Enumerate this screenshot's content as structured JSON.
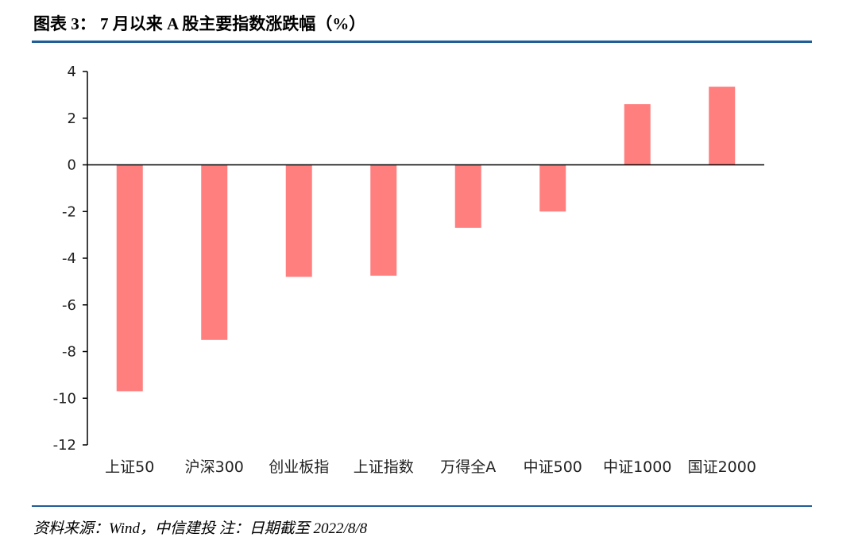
{
  "header": {
    "title": "图表 3：  7 月以来 A 股主要指数涨跌幅（%）"
  },
  "footer": {
    "source": "资料来源：Wind，中信建投   注：日期截至 2022/8/8"
  },
  "colors": {
    "bar": "#ff7f7f",
    "rule": "#1f5e96",
    "axis": "#000000"
  },
  "chart_data": {
    "type": "bar",
    "title": "7 月以来 A 股主要指数涨跌幅（%）",
    "categories": [
      "上证50",
      "沪深300",
      "创业板指",
      "上证指数",
      "万得全A",
      "中证500",
      "中证1000",
      "国证2000"
    ],
    "values": [
      -9.7,
      -7.5,
      -4.8,
      -4.75,
      -2.7,
      -2.0,
      2.6,
      3.35
    ],
    "yticks": [
      "4",
      "2",
      "0",
      "-2",
      "-4",
      "-6",
      "-8",
      "-10",
      "-12"
    ],
    "ylim": [
      -12,
      4
    ],
    "xlabel": "",
    "ylabel": "",
    "grid": false,
    "legend": "none"
  }
}
